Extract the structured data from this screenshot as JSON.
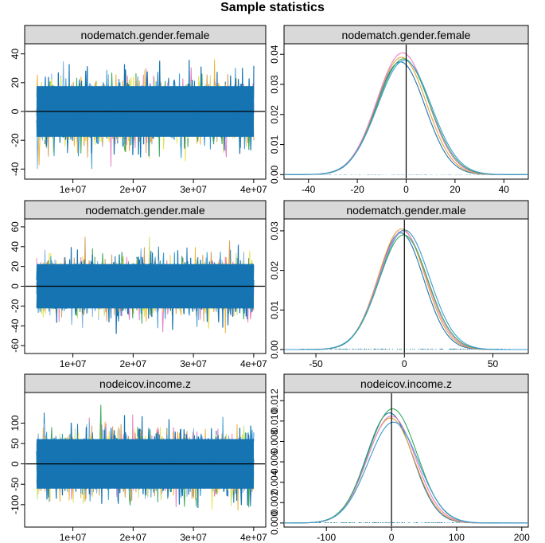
{
  "title": "Sample statistics",
  "colors": {
    "chains": [
      "#1f77b4",
      "#e77fc5",
      "#f0b43c",
      "#37a85a",
      "#7fb3e0",
      "#d4a15b",
      "#c9e07b",
      "#e5e44c",
      "#3a9bd5"
    ],
    "main": "#1674b3",
    "strip_bg": "#d9d9d9"
  },
  "chart_data": [
    {
      "type": "line",
      "panel": "trace",
      "title": "nodematch.gender.female",
      "xticks": [
        10000000,
        20000000,
        30000000,
        40000000
      ],
      "xtick_labels": [
        "1e+07",
        "2e+07",
        "3e+07",
        "4e+07"
      ],
      "xlim": [
        2000000,
        42000000
      ],
      "yticks": [
        40,
        20,
        0,
        -20,
        -40
      ],
      "ytick_labels": [
        "40",
        "20",
        "0",
        "-20",
        "-40"
      ],
      "ylim": [
        -47,
        47
      ],
      "series_center": 0,
      "series_sd": 11,
      "series_extent": [
        -40,
        42
      ],
      "hline": 0
    },
    {
      "type": "line",
      "panel": "density",
      "title": "nodematch.gender.female",
      "xticks": [
        -40,
        -20,
        0,
        20,
        40
      ],
      "xtick_labels": [
        "-40",
        "-20",
        "0",
        "20",
        "40"
      ],
      "xlim": [
        -50,
        50
      ],
      "yticks": [
        0.0,
        0.01,
        0.02,
        0.03,
        0.04
      ],
      "ytick_labels": [
        "0.00",
        "0.01",
        "0.02",
        "0.03",
        "0.04"
      ],
      "ylim": [
        -0.0015,
        0.0435
      ],
      "mean": -1.5,
      "sd": 10.5,
      "peak_values": [
        0.0375,
        0.039,
        0.0405,
        0.0385,
        0.038
      ],
      "vline": 0,
      "rug_range": [
        -40,
        40
      ]
    },
    {
      "type": "line",
      "panel": "trace",
      "title": "nodematch.gender.male",
      "xticks": [
        10000000,
        20000000,
        30000000,
        40000000
      ],
      "xtick_labels": [
        "1e+07",
        "2e+07",
        "3e+07",
        "4e+07"
      ],
      "xlim": [
        2000000,
        42000000
      ],
      "yticks": [
        60,
        40,
        20,
        0,
        -20,
        -40,
        -60
      ],
      "ytick_labels": [
        "60",
        "40",
        "20",
        "0",
        "-20",
        "-40",
        "-60"
      ],
      "ylim": [
        -68,
        68
      ],
      "series_center": 0,
      "series_sd": 14,
      "series_extent": [
        -60,
        60
      ],
      "hline": 0
    },
    {
      "type": "line",
      "panel": "density",
      "title": "nodematch.gender.male",
      "xticks": [
        -50,
        0,
        50
      ],
      "xtick_labels": [
        "-50",
        "0",
        "50"
      ],
      "xlim": [
        -68,
        70
      ],
      "yticks": [
        0.0,
        0.01,
        0.02,
        0.03
      ],
      "ytick_labels": [
        "0.00",
        "0.01",
        "0.02",
        "0.03"
      ],
      "ylim": [
        -0.001,
        0.033
      ],
      "mean": -1,
      "sd": 13.5,
      "peak_values": [
        0.0295,
        0.0305,
        0.03,
        0.029,
        0.0302
      ],
      "vline": 0,
      "rug_range": [
        -60,
        60
      ]
    },
    {
      "type": "line",
      "panel": "trace",
      "title": "nodeicov.income.z",
      "xticks": [
        10000000,
        20000000,
        30000000,
        40000000
      ],
      "xtick_labels": [
        "1e+07",
        "2e+07",
        "3e+07",
        "4e+07"
      ],
      "xlim": [
        2000000,
        42000000
      ],
      "yticks": [
        100,
        50,
        0,
        -50,
        -100
      ],
      "ytick_labels": [
        "100",
        "50",
        "0",
        "-50",
        "-100"
      ],
      "ylim": [
        -155,
        175
      ],
      "series_center": 0,
      "series_sd": 38,
      "series_extent": [
        -130,
        145
      ],
      "hline": 0
    },
    {
      "type": "line",
      "panel": "density",
      "title": "nodeicov.income.z",
      "xticks": [
        -100,
        0,
        100,
        200
      ],
      "xtick_labels": [
        "-100",
        "0",
        "100",
        "200"
      ],
      "xlim": [
        -165,
        210
      ],
      "yticks": [
        0.0,
        0.002,
        0.004,
        0.006,
        0.008,
        0.01,
        0.012
      ],
      "ytick_labels": [
        "0.000",
        "0.002",
        "0.004",
        "0.006",
        "0.008",
        "0.010",
        "0.012"
      ],
      "ylim": [
        -0.0004,
        0.0128
      ],
      "mean": 0,
      "sd": 37,
      "peak_values": [
        0.0108,
        0.0103,
        0.0105,
        0.0112,
        0.0099
      ],
      "vline": 0,
      "rug_range": [
        -140,
        180
      ]
    }
  ]
}
